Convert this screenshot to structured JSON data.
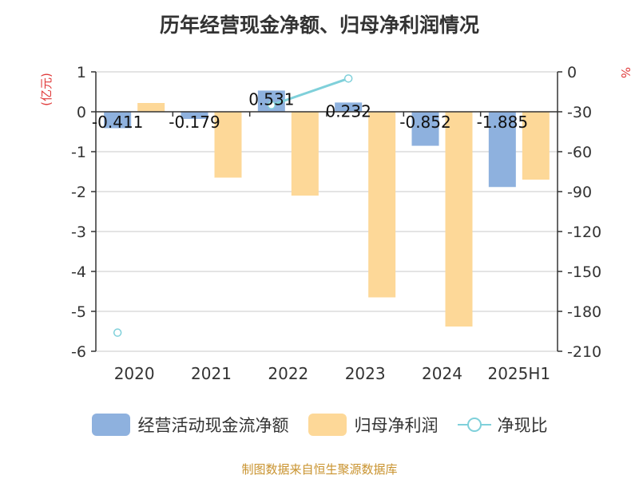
{
  "colors": {
    "cashflow": "#8eb1de",
    "profit": "#fdd898",
    "ratio": "#7fd0da",
    "unit": "#e03a3a",
    "source": "#c9932f",
    "axis": "#333333",
    "grid": "#c8c8c8"
  },
  "legend": {
    "cashflow": "经营活动现金流净额",
    "profit": "归母净利润",
    "ratio": "净现比"
  },
  "source_text": "制图数据来自恒生聚源数据库",
  "chart_data": {
    "type": "bar",
    "title": "历年经营现金净额、归母净利润情况",
    "categories": [
      "2020",
      "2021",
      "2022",
      "2023",
      "2024",
      "2025H1"
    ],
    "y_left": {
      "label": "(亿元)",
      "min": -6,
      "max": 1,
      "ticks": [
        "1",
        "0",
        "-1",
        "-2",
        "-3",
        "-4",
        "-5",
        "-6"
      ]
    },
    "y_right": {
      "label": "%",
      "min": -210,
      "max": 0,
      "ticks": [
        "0",
        "-30",
        "-60",
        "-90",
        "-120",
        "-150",
        "-180",
        "-210"
      ]
    },
    "grid": true,
    "legend_position": "bottom",
    "series": [
      {
        "name": "经营活动现金流净额",
        "type": "bar",
        "axis": "left",
        "values": [
          -0.411,
          -0.179,
          0.531,
          0.232,
          -0.852,
          -1.885
        ],
        "labels": [
          "-0.411",
          "-0.179",
          "0.531",
          "0.232",
          "-0.852",
          "-1.885"
        ]
      },
      {
        "name": "归母净利润",
        "type": "bar",
        "axis": "left",
        "values": [
          0.22,
          -1.65,
          -2.1,
          -4.65,
          -5.38,
          -1.7
        ]
      },
      {
        "name": "净现比",
        "type": "line",
        "axis": "right",
        "values": [
          -196,
          null,
          -25,
          -5,
          null,
          null
        ]
      }
    ]
  }
}
